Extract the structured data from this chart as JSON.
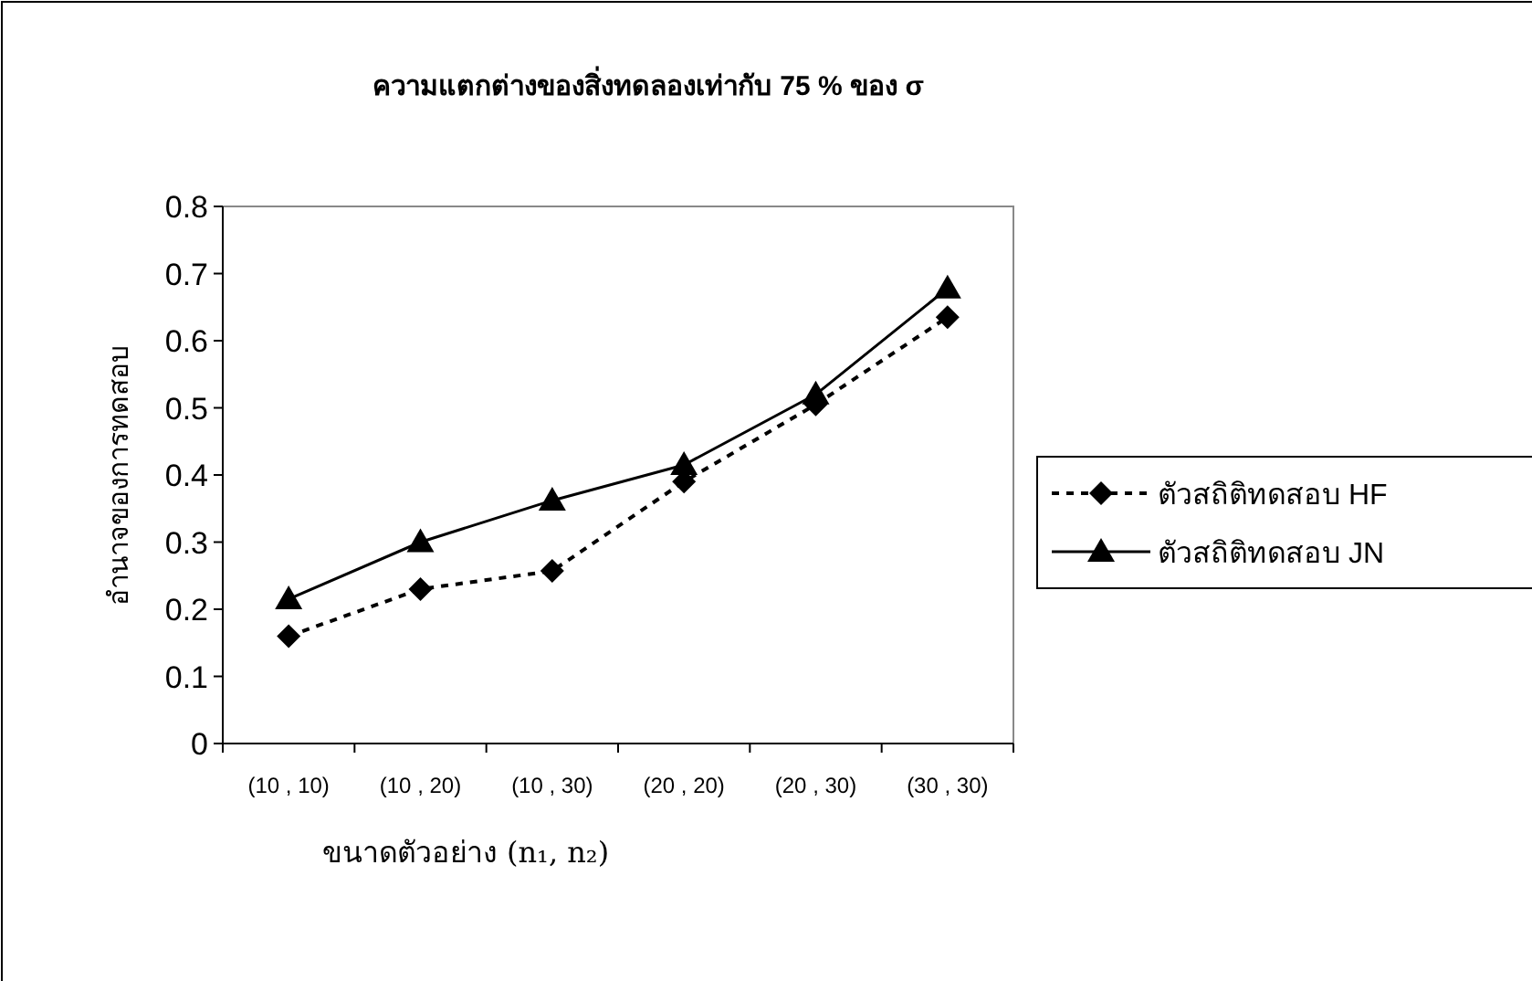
{
  "chart_data": {
    "type": "line",
    "title": "ความแตกต่างของสิ่งทดลองเท่ากับ 75 % ของ σ",
    "xlabel": "ขนาดตัวอย่าง (n₁, n₂)",
    "ylabel": "อำนาจของการทดสอบ",
    "categories": [
      "(10 , 10)",
      "(10 , 20)",
      "(10 , 30)",
      "(20 , 20)",
      "(20 , 30)",
      "(30 , 30)"
    ],
    "series": [
      {
        "name": "ตัวสถิติทดสอบ HF",
        "color": "#000000",
        "marker": "diamond",
        "line_style": "dashed",
        "values": [
          0.16,
          0.23,
          0.257,
          0.39,
          0.505,
          0.635
        ]
      },
      {
        "name": "ตัวสถิติทดสอบ JN",
        "color": "#000000",
        "marker": "triangle",
        "line_style": "solid",
        "values": [
          0.215,
          0.3,
          0.362,
          0.415,
          0.52,
          0.678
        ]
      }
    ],
    "ylim": [
      0,
      0.8
    ],
    "yticks": [
      0,
      0.1,
      0.2,
      0.3,
      0.4,
      0.5,
      0.6,
      0.7,
      0.8
    ],
    "grid": false,
    "legend": "right"
  }
}
